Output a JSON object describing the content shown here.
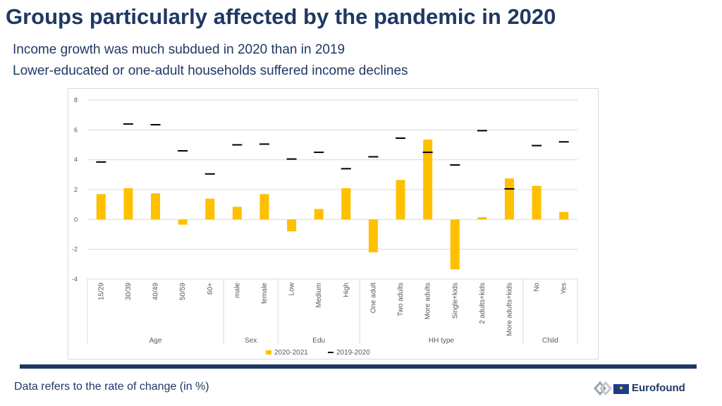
{
  "title": "Groups particularly affected by the pandemic in 2020",
  "subtitle1": "Income growth was much subdued in 2020 than in 2019",
  "subtitle2": "Lower-educated or one-adult households suffered income declines",
  "footnote": "Data refers to the rate of change (in %)",
  "logo_text": "Eurofound",
  "colors": {
    "bar": "#ffc000",
    "marker": "#000000",
    "title": "#1f3864",
    "grid": "#d9d9d9",
    "axis_text": "#595959"
  },
  "chart_data": {
    "type": "bar",
    "title": "",
    "ylim": [
      -4,
      8
    ],
    "yticks": [
      -4,
      -2,
      0,
      2,
      4,
      6,
      8
    ],
    "categories": [
      "15/29",
      "30/39",
      "40/49",
      "50/59",
      "60+",
      "male",
      "female",
      "Low",
      "Medium",
      "High",
      "One adult",
      "Two adults",
      "More adults",
      "Single+kids",
      "2 adults+kids",
      "More adults+kids",
      "No",
      "Yes"
    ],
    "groups": [
      {
        "label": "Age",
        "count": 5
      },
      {
        "label": "Sex",
        "count": 2
      },
      {
        "label": "Edu",
        "count": 3
      },
      {
        "label": "HH type",
        "count": 6
      },
      {
        "label": "Child",
        "count": 2
      }
    ],
    "series": [
      {
        "name": "2020-2021",
        "kind": "bar",
        "values": [
          1.7,
          2.1,
          1.75,
          -0.35,
          1.4,
          0.85,
          1.7,
          -0.8,
          0.7,
          2.1,
          -2.2,
          2.65,
          5.35,
          -3.35,
          0.15,
          2.75,
          2.25,
          0.5
        ]
      },
      {
        "name": "2019-2020",
        "kind": "marker",
        "values": [
          3.85,
          6.4,
          6.35,
          4.6,
          3.05,
          5.0,
          5.05,
          4.05,
          4.5,
          3.4,
          4.2,
          5.45,
          4.5,
          3.65,
          5.95,
          2.05,
          4.95,
          5.2
        ]
      }
    ],
    "legend": [
      "2020-2021",
      "2019-2020"
    ],
    "legend_position": "bottom"
  }
}
